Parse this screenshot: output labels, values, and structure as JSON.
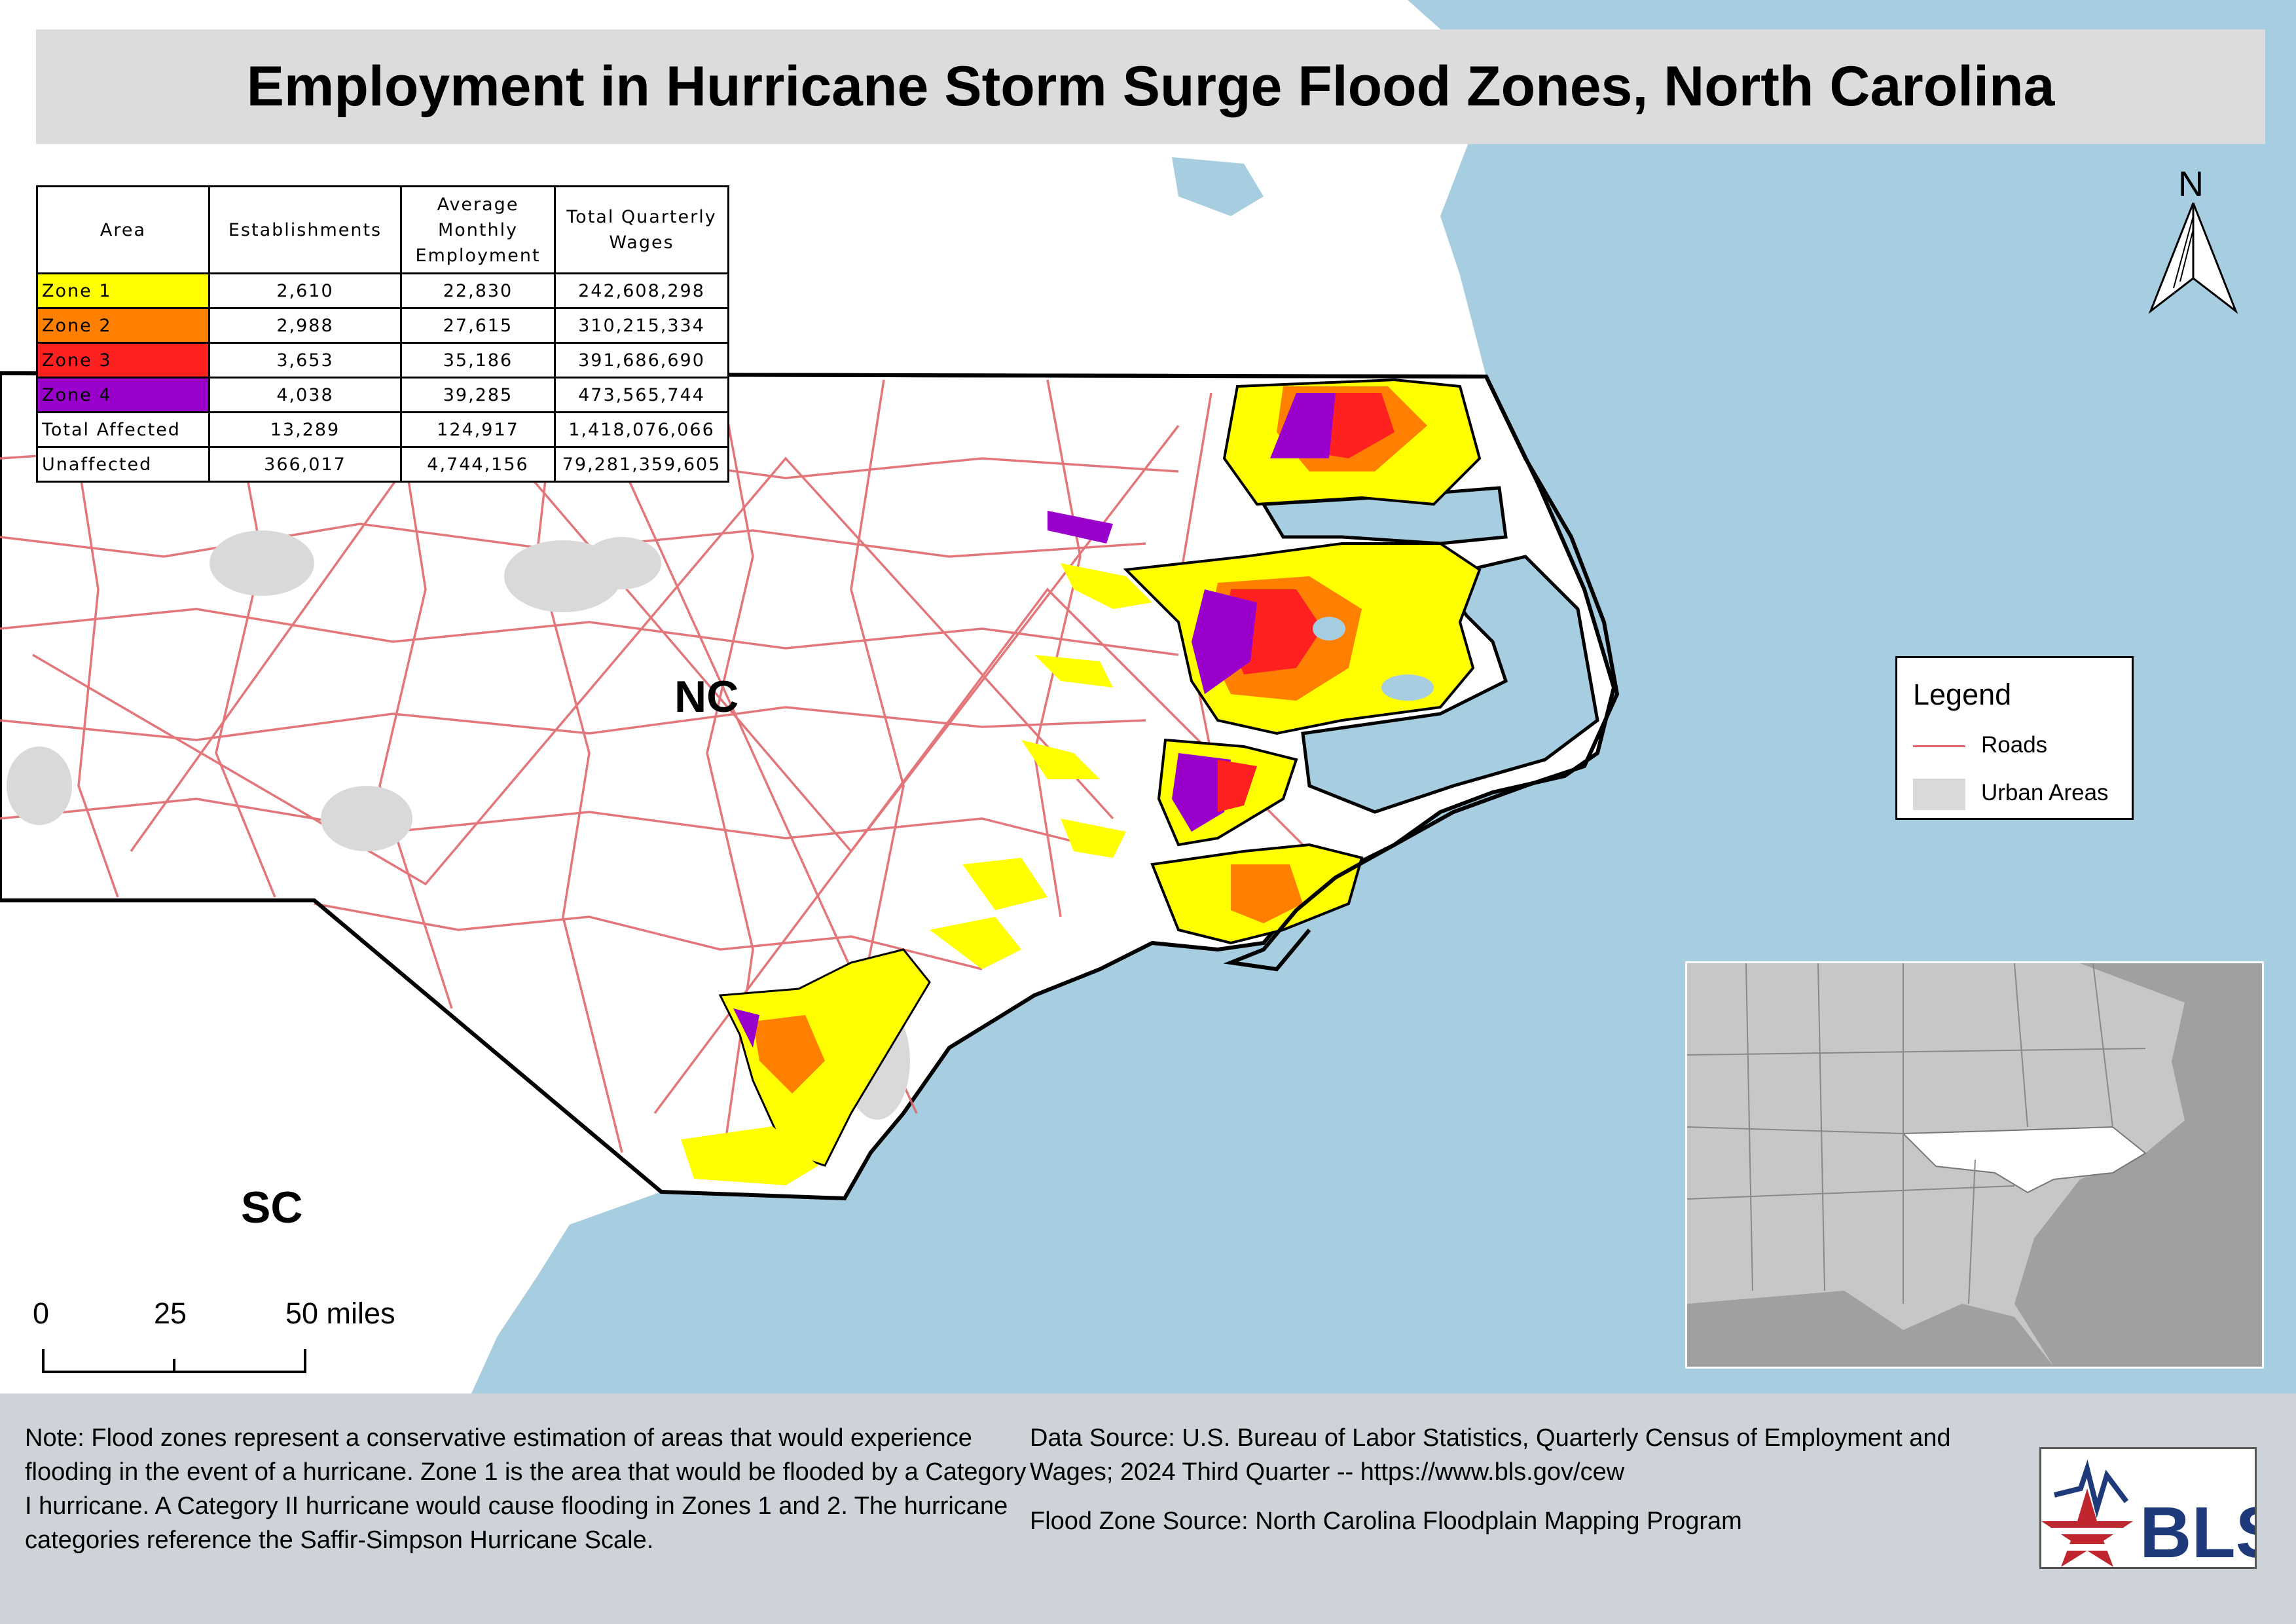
{
  "title": "Employment in Hurricane Storm Surge Flood Zones, North Carolina",
  "table": {
    "headers": [
      "Area",
      "Establishments",
      "Average Monthly Employment",
      "Total Quarterly Wages"
    ],
    "rows": [
      {
        "area": "Zone 1",
        "color": "#ffff00",
        "establishments": "2,610",
        "employment": "22,830",
        "wages": "242,608,298"
      },
      {
        "area": "Zone 2",
        "color": "#ff8000",
        "establishments": "2,988",
        "employment": "27,615",
        "wages": "310,215,334"
      },
      {
        "area": "Zone 3",
        "color": "#ff2020",
        "establishments": "3,653",
        "employment": "35,186",
        "wages": "391,686,690"
      },
      {
        "area": "Zone 4",
        "color": "#9900cc",
        "establishments": "4,038",
        "employment": "39,285",
        "wages": "473,565,744"
      },
      {
        "area": "Total Affected",
        "color": "#ffffff",
        "establishments": "13,289",
        "employment": "124,917",
        "wages": "1,418,076,066"
      },
      {
        "area": "Unaffected",
        "color": "#ffffff",
        "establishments": "366,017",
        "employment": "4,744,156",
        "wages": "79,281,359,605"
      }
    ]
  },
  "map": {
    "state_labels": {
      "nc": "NC",
      "sc": "SC"
    },
    "north_label": "N",
    "colors": {
      "ocean": "#a7cde0",
      "land": "#ffffff",
      "roads": "#e0686c",
      "urban": "#d9d9d9",
      "water": "#c6dff0"
    }
  },
  "legend": {
    "title": "Legend",
    "roads_label": "Roads",
    "urban_label": "Urban Areas"
  },
  "scale_bar": {
    "labels": [
      "0",
      "25",
      "50 miles"
    ]
  },
  "footer": {
    "note": "Note: Flood zones represent a conservative estimation of areas that would experience flooding in the event of a hurricane. Zone 1 is the area that would be flooded by a Category I hurricane. A Category II hurricane would cause flooding in Zones 1 and 2. The hurricane categories reference the Saffir-Simpson Hurricane Scale.",
    "data_source": "Data Source: U.S. Bureau of Labor Statistics, Quarterly Census of Employment and Wages; 2024 Third Quarter -- https://www.bls.gov/cew",
    "flood_source": "Flood Zone Source: North Carolina Floodplain Mapping Program",
    "logo_text": "BLS"
  }
}
